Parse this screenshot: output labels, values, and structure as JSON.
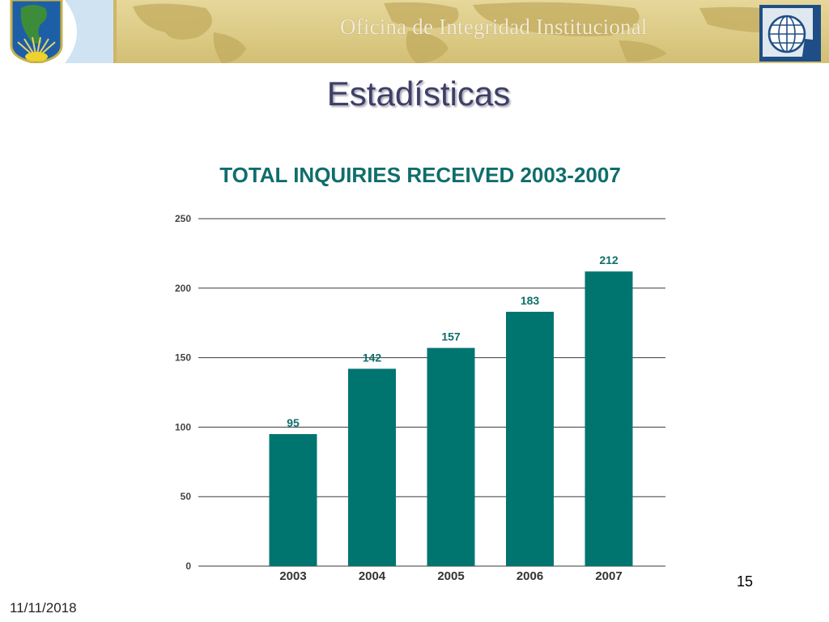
{
  "header": {
    "banner_title": "Oficina de Integridad Institucional",
    "left_logo_icon": "oas-shield-logo-icon",
    "right_logo_icon": "globe-logo-icon"
  },
  "slide": {
    "title": "Estadísticas",
    "page_number": "15",
    "date": "11/11/2018"
  },
  "colors": {
    "bar": "#007570",
    "title_teal": "#0f6e6c",
    "title_purple": "#3e3f66"
  },
  "chart_data": {
    "type": "bar",
    "title": "TOTAL INQUIRIES RECEIVED 2003-2007",
    "categories": [
      "2003",
      "2004",
      "2005",
      "2006",
      "2007"
    ],
    "values": [
      95,
      142,
      157,
      183,
      212
    ],
    "data_labels": [
      "95",
      "142",
      "157",
      "183",
      "212"
    ],
    "yticks": [
      "0",
      "50",
      "100",
      "150",
      "200",
      "250"
    ],
    "ylim": [
      0,
      250
    ],
    "xlabel": "",
    "ylabel": "",
    "grid": true,
    "legend": false
  }
}
